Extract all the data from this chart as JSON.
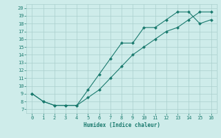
{
  "xlabel": "Humidex (Indice chaleur)",
  "line1_x": [
    0,
    1,
    2,
    3,
    4,
    5,
    6,
    7,
    8,
    9,
    10,
    11,
    12,
    13,
    14,
    15,
    16
  ],
  "line1_y": [
    9,
    8,
    7.5,
    7.5,
    7.5,
    9.5,
    11.5,
    13.5,
    15.5,
    15.5,
    17.5,
    17.5,
    18.5,
    19.5,
    19.5,
    18.0,
    18.5
  ],
  "line2_x": [
    0,
    1,
    2,
    3,
    4,
    5,
    6,
    7,
    8,
    9,
    10,
    11,
    12,
    13,
    14,
    15,
    16
  ],
  "line2_y": [
    9,
    8,
    7.5,
    7.5,
    7.5,
    8.5,
    9.5,
    11.0,
    12.5,
    14.0,
    15.0,
    16.0,
    17.0,
    17.5,
    18.5,
    19.5,
    19.5
  ],
  "xlim": [
    -0.5,
    16.5
  ],
  "ylim": [
    6.5,
    20.5
  ],
  "yticks": [
    7,
    8,
    9,
    10,
    11,
    12,
    13,
    14,
    15,
    16,
    17,
    18,
    19,
    20
  ],
  "xticks": [
    0,
    1,
    2,
    3,
    4,
    5,
    6,
    7,
    8,
    9,
    10,
    11,
    12,
    13,
    14,
    15,
    16
  ],
  "line_color": "#1a7a6e",
  "bg_color": "#ceecea",
  "grid_color": "#aacfcc",
  "marker_size": 2.5,
  "line_width": 0.8,
  "font_family": "monospace"
}
